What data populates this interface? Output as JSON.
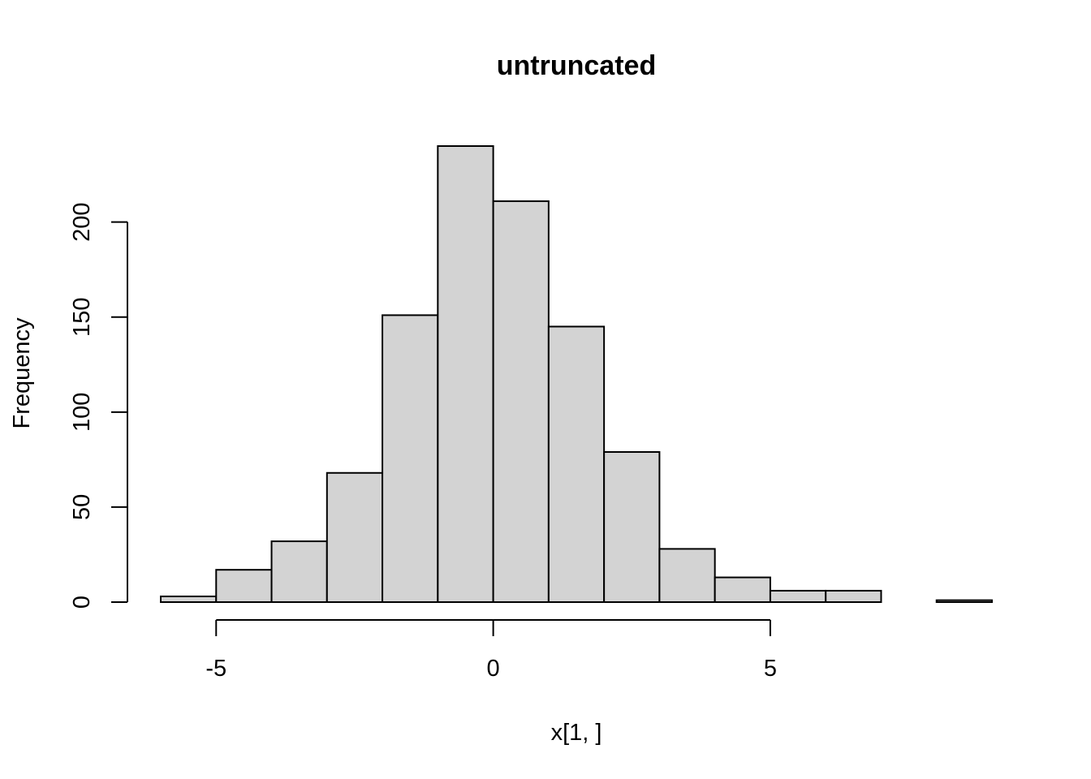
{
  "chart_data": {
    "type": "bar",
    "subtype": "histogram",
    "title": "untruncated",
    "xlabel": "x[1, ]",
    "ylabel": "Frequency",
    "bins": [
      {
        "from": -6,
        "to": -5,
        "count": 3
      },
      {
        "from": -5,
        "to": -4,
        "count": 17
      },
      {
        "from": -4,
        "to": -3,
        "count": 32
      },
      {
        "from": -3,
        "to": -2,
        "count": 68
      },
      {
        "from": -2,
        "to": -1,
        "count": 151
      },
      {
        "from": -1,
        "to": 0,
        "count": 240
      },
      {
        "from": 0,
        "to": 1,
        "count": 211
      },
      {
        "from": 1,
        "to": 2,
        "count": 145
      },
      {
        "from": 2,
        "to": 3,
        "count": 79
      },
      {
        "from": 3,
        "to": 4,
        "count": 28
      },
      {
        "from": 4,
        "to": 5,
        "count": 13
      },
      {
        "from": 5,
        "to": 6,
        "count": 6
      },
      {
        "from": 6,
        "to": 7,
        "count": 6
      },
      {
        "from": 7,
        "to": 8,
        "count": 0
      },
      {
        "from": 8,
        "to": 9,
        "count": 1
      }
    ],
    "xlim": [
      -6,
      9
    ],
    "ylim": [
      0,
      240
    ],
    "x_ticks": [
      -5,
      0,
      5
    ],
    "x_tick_labels": [
      "-5",
      "0",
      "5"
    ],
    "y_ticks": [
      0,
      50,
      100,
      150,
      200
    ],
    "y_tick_labels": [
      "0",
      "50",
      "100",
      "150",
      "200"
    ],
    "grid": false,
    "legend": "none",
    "bar_fill": "#d3d3d3",
    "bar_stroke": "#000000"
  }
}
